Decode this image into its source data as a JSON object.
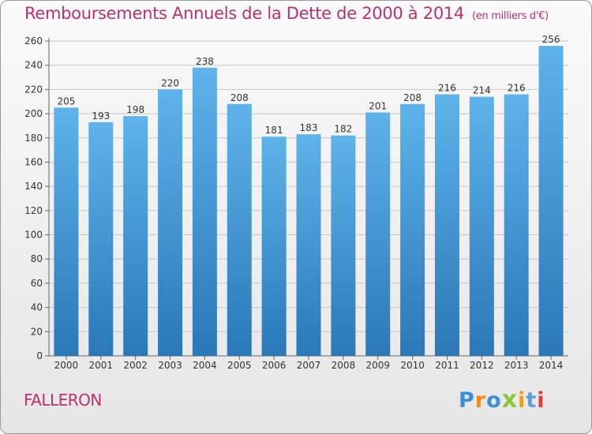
{
  "chart_data": {
    "type": "bar",
    "title": "Remboursements Annuels de la Dette de 2000 à 2014",
    "unit_note": "(en milliers d'€)",
    "categories": [
      "2000",
      "2001",
      "2002",
      "2003",
      "2004",
      "2005",
      "2006",
      "2007",
      "2008",
      "2009",
      "2010",
      "2011",
      "2012",
      "2013",
      "2014"
    ],
    "values": [
      205,
      193,
      198,
      220,
      238,
      208,
      181,
      183,
      182,
      201,
      208,
      216,
      214,
      216,
      256
    ],
    "yticks": [
      0,
      20,
      40,
      60,
      80,
      100,
      120,
      140,
      160,
      180,
      200,
      220,
      240,
      260
    ],
    "ylim": [
      0,
      260
    ],
    "xlabel": "",
    "ylabel": "",
    "grid": true
  },
  "footer": {
    "commune": "FALLERON",
    "logo_letters": [
      "P",
      "r",
      "o",
      "x",
      "i",
      "t",
      "i"
    ]
  },
  "colors": {
    "title": "#b8336a",
    "bar_top": "#5eb3ea",
    "bar_bottom": "#2a78b8",
    "logo": [
      "#3a8fd6",
      "#f08a1a",
      "#3a8fd6",
      "#8cc63f",
      "#e8a21a",
      "#5aa0d8",
      "#e23b3b"
    ]
  }
}
